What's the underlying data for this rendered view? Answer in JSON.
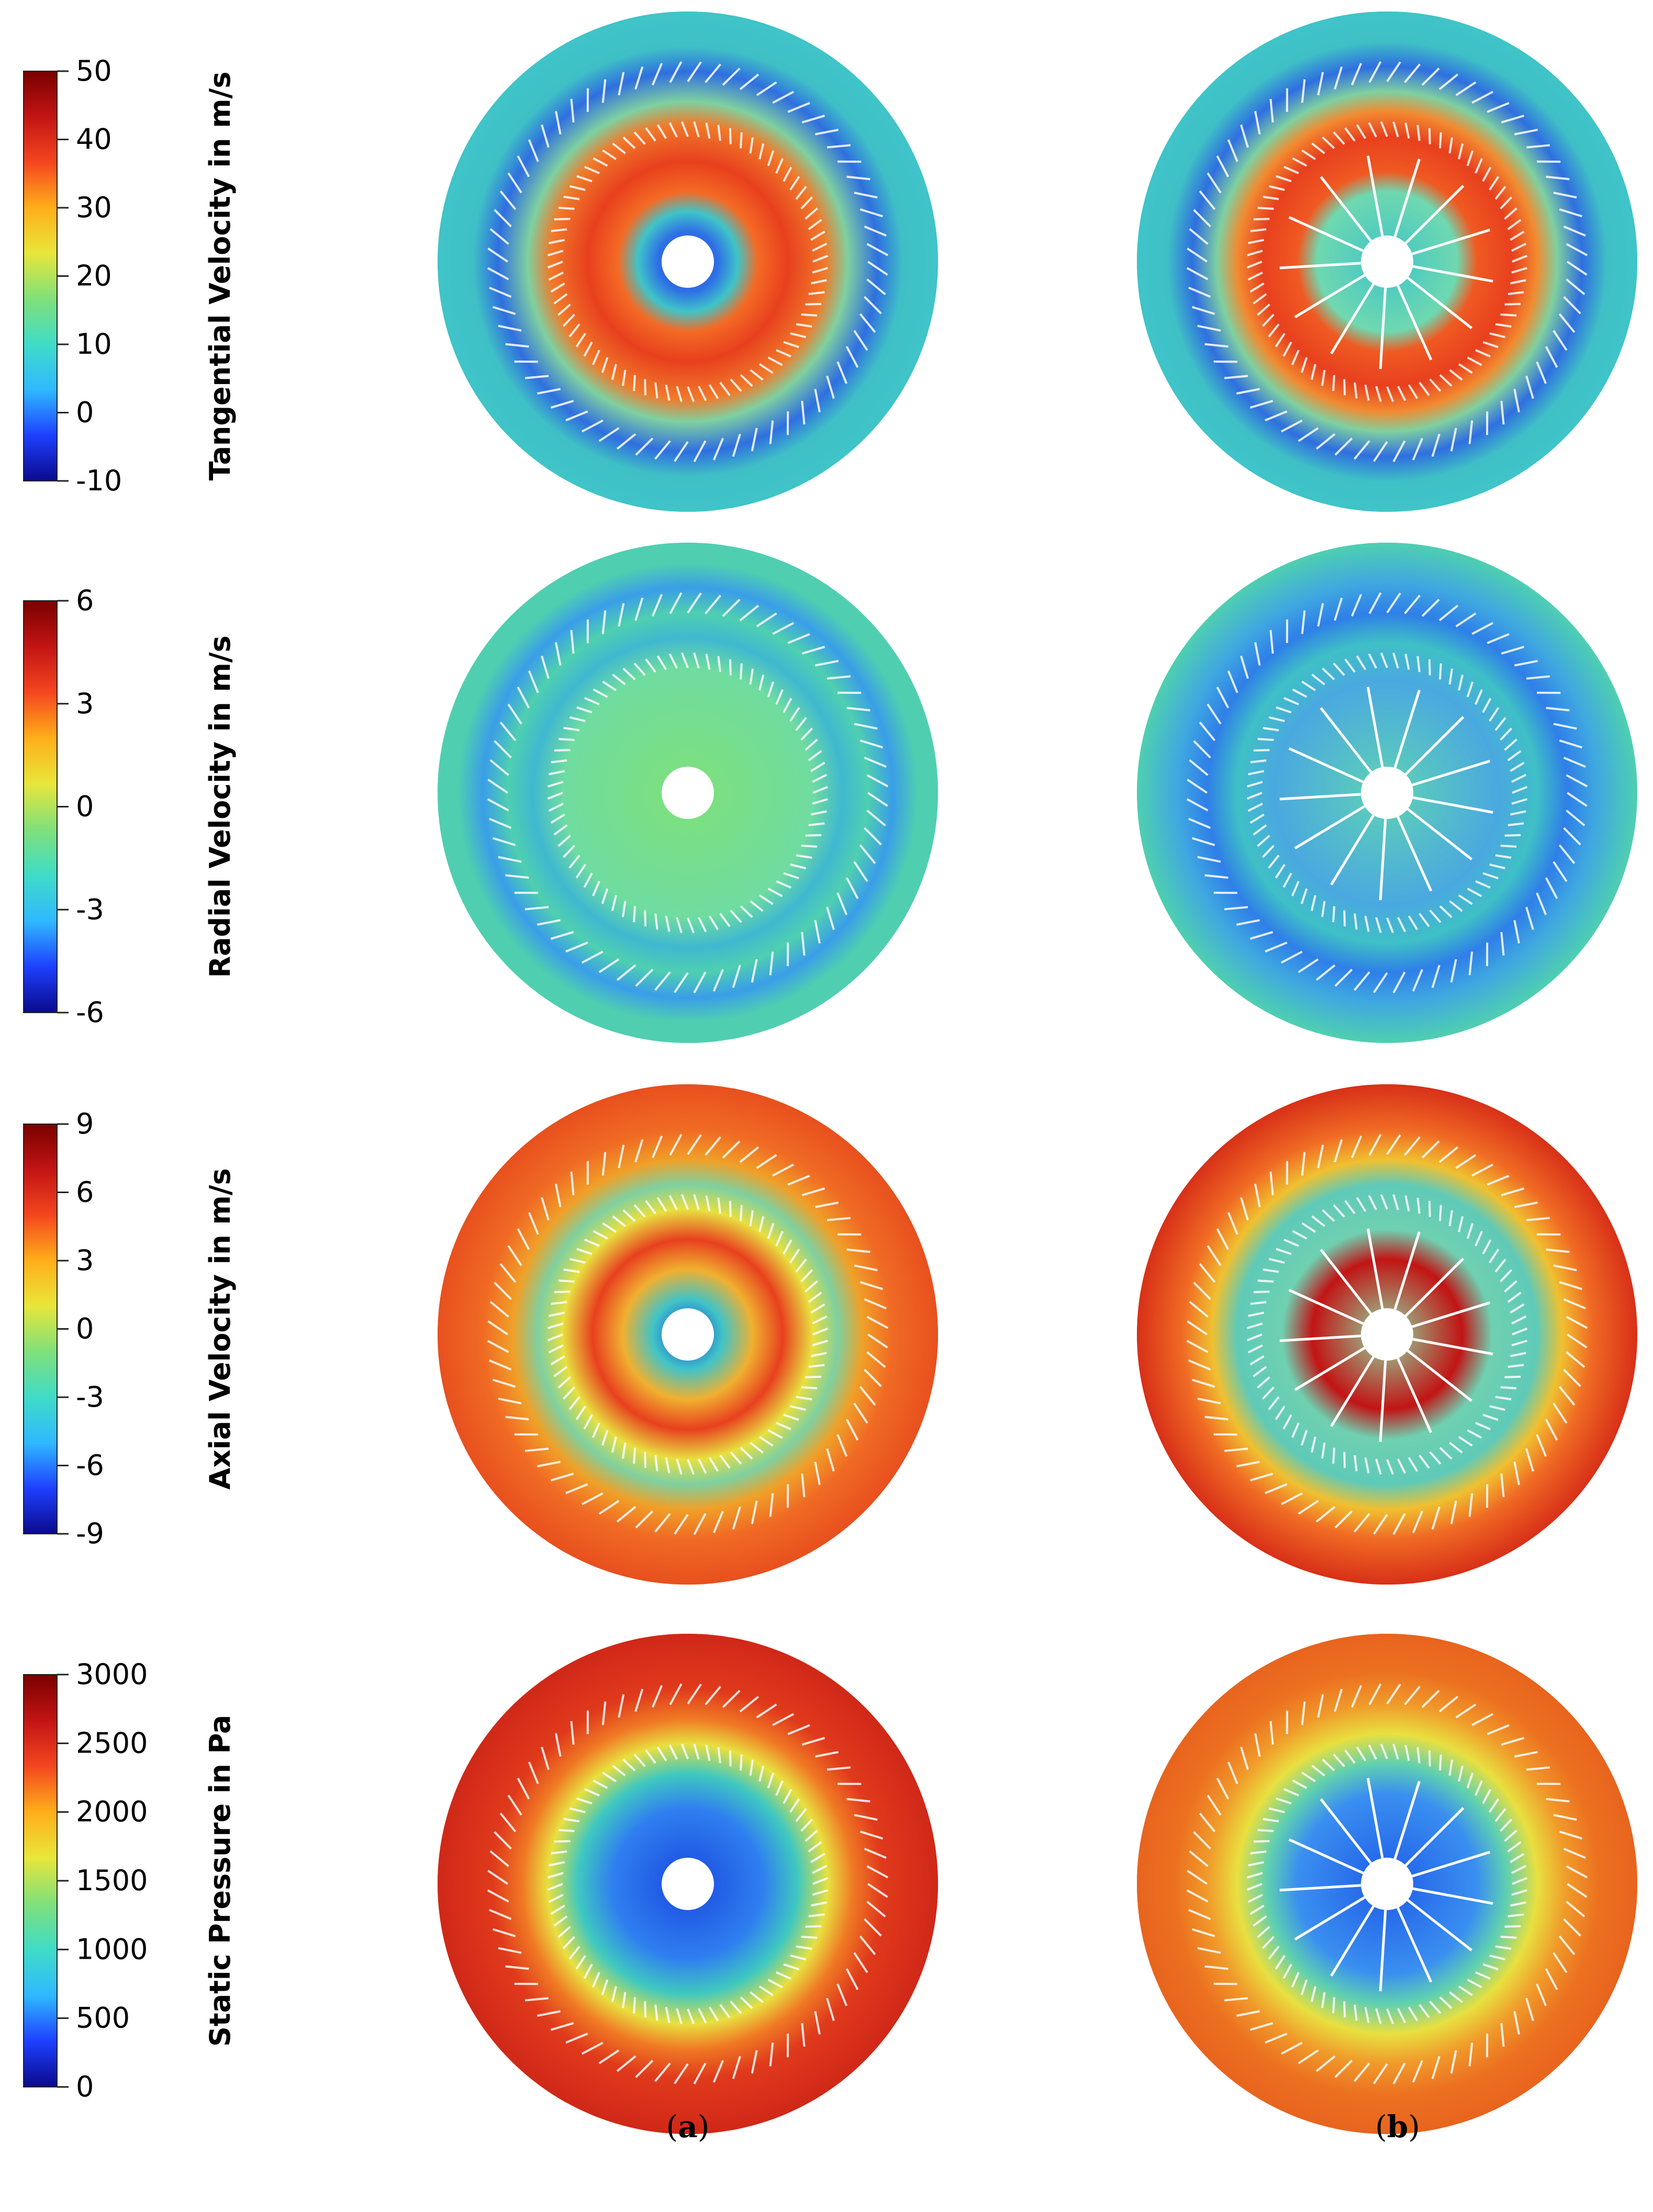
{
  "colormap": [
    "#0a0a8c",
    "#1e40ff",
    "#2fb9ff",
    "#3fdcc8",
    "#7fe07a",
    "#e8e63a",
    "#ffae1a",
    "#f4461e",
    "#c21414",
    "#7a0000"
  ],
  "blade_color": "#ffffff",
  "rows": [
    {
      "id": "tangential",
      "colorbar": {
        "title": "Tangential Velocity in m/s",
        "ticks": [
          "50",
          "40",
          "30",
          "20",
          "10",
          "0",
          "-10"
        ],
        "min": -10,
        "max": 50
      },
      "panels": [
        {
          "background": "#3fc4c8",
          "levels": [
            {
              "r": 0.0,
              "color": "#2a46d8"
            },
            {
              "r": 0.12,
              "color": "#2e6fe6"
            },
            {
              "r": 0.2,
              "color": "#3fc4c8"
            },
            {
              "r": 0.28,
              "color": "#f46a24"
            },
            {
              "r": 0.4,
              "color": "#e8401e"
            },
            {
              "r": 0.55,
              "color": "#f07a2a"
            },
            {
              "r": 0.64,
              "color": "#7fd0a0"
            },
            {
              "r": 0.76,
              "color": "#2f6fe0"
            },
            {
              "r": 0.86,
              "color": "#3fc0c6"
            },
            {
              "r": 1.0,
              "color": "#3fc4c8"
            }
          ],
          "spokes": false
        },
        {
          "background": "#3fc4c8",
          "levels": [
            {
              "r": 0.0,
              "color": "#3fc4c8"
            },
            {
              "r": 0.28,
              "color": "#6fd8b0"
            },
            {
              "r": 0.36,
              "color": "#f05a22"
            },
            {
              "r": 0.5,
              "color": "#e8401e"
            },
            {
              "r": 0.6,
              "color": "#f28a30"
            },
            {
              "r": 0.68,
              "color": "#7fd0a0"
            },
            {
              "r": 0.78,
              "color": "#2f6fe0"
            },
            {
              "r": 0.88,
              "color": "#3fc0c6"
            },
            {
              "r": 1.0,
              "color": "#3fc4c8"
            }
          ],
          "spokes": true
        }
      ]
    },
    {
      "id": "radial",
      "colorbar": {
        "title": "Radial Velocity in m/s",
        "ticks": [
          "6",
          "3",
          "0",
          "-3",
          "-6"
        ],
        "min": -6,
        "max": 6
      },
      "panels": [
        {
          "background": "#4fcfb0",
          "levels": [
            {
              "r": 0.0,
              "color": "#7fe07a"
            },
            {
              "r": 0.5,
              "color": "#6fdca0"
            },
            {
              "r": 0.62,
              "color": "#3fb8d0"
            },
            {
              "r": 0.72,
              "color": "#4fcfb0"
            },
            {
              "r": 0.82,
              "color": "#3a9ee8"
            },
            {
              "r": 0.92,
              "color": "#4fcfb0"
            },
            {
              "r": 1.0,
              "color": "#4fcfb0"
            }
          ],
          "spokes": false
        },
        {
          "background": "#4fcfb0",
          "levels": [
            {
              "r": 0.0,
              "color": "#5fd2b4"
            },
            {
              "r": 0.45,
              "color": "#4aa8e0"
            },
            {
              "r": 0.6,
              "color": "#3fc0c6"
            },
            {
              "r": 0.72,
              "color": "#2f7fe8"
            },
            {
              "r": 0.84,
              "color": "#3fa8e0"
            },
            {
              "r": 1.0,
              "color": "#4fcfb0"
            }
          ],
          "spokes": true
        }
      ]
    },
    {
      "id": "axial",
      "colorbar": {
        "title": "Axial Velocity in m/s",
        "ticks": [
          "9",
          "6",
          "3",
          "0",
          "-3",
          "-6",
          "-9"
        ],
        "min": -9,
        "max": 9
      },
      "panels": [
        {
          "background": "#f07a2a",
          "levels": [
            {
              "r": 0.0,
              "color": "#1a34d0"
            },
            {
              "r": 0.14,
              "color": "#3fc4c8"
            },
            {
              "r": 0.26,
              "color": "#f0b030"
            },
            {
              "r": 0.38,
              "color": "#e8401e"
            },
            {
              "r": 0.5,
              "color": "#e8e040"
            },
            {
              "r": 0.6,
              "color": "#7fd0a0"
            },
            {
              "r": 0.7,
              "color": "#f0a028"
            },
            {
              "r": 0.82,
              "color": "#f06a24"
            },
            {
              "r": 1.0,
              "color": "#e8501e"
            }
          ],
          "spokes": false
        },
        {
          "background": "#f07a2a",
          "levels": [
            {
              "r": 0.0,
              "color": "#8fd8a0"
            },
            {
              "r": 0.3,
              "color": "#c21414"
            },
            {
              "r": 0.42,
              "color": "#6fd0b0"
            },
            {
              "r": 0.6,
              "color": "#5fcab8"
            },
            {
              "r": 0.7,
              "color": "#f0c030"
            },
            {
              "r": 0.82,
              "color": "#f06a24"
            },
            {
              "r": 1.0,
              "color": "#d83018"
            }
          ],
          "spokes": true
        }
      ]
    },
    {
      "id": "pressure",
      "colorbar": {
        "title": "Static Pressure in Pa",
        "ticks": [
          "3000",
          "2500",
          "2000",
          "1500",
          "1000",
          "500",
          "0"
        ],
        "min": 0,
        "max": 3000
      },
      "panels": [
        {
          "background": "#d82a1a",
          "levels": [
            {
              "r": 0.0,
              "color": "#1a48e0"
            },
            {
              "r": 0.3,
              "color": "#2f7ff0"
            },
            {
              "r": 0.44,
              "color": "#3fc8c0"
            },
            {
              "r": 0.56,
              "color": "#e8e040"
            },
            {
              "r": 0.66,
              "color": "#f07a24"
            },
            {
              "r": 0.78,
              "color": "#e03a1c"
            },
            {
              "r": 1.0,
              "color": "#d02818"
            }
          ],
          "spokes": false
        },
        {
          "background": "#e8641e",
          "levels": [
            {
              "r": 0.0,
              "color": "#1f5ce8"
            },
            {
              "r": 0.36,
              "color": "#3a8ff0"
            },
            {
              "r": 0.48,
              "color": "#5fd0b0"
            },
            {
              "r": 0.6,
              "color": "#e8e040"
            },
            {
              "r": 0.72,
              "color": "#f09a2a"
            },
            {
              "r": 0.85,
              "color": "#ec7020"
            },
            {
              "r": 1.0,
              "color": "#e8641e"
            }
          ],
          "spokes": true
        }
      ]
    }
  ],
  "panel_labels": [
    {
      "open": "(",
      "letter": "a",
      "close": ")"
    },
    {
      "open": "(",
      "letter": "b",
      "close": ")"
    }
  ]
}
